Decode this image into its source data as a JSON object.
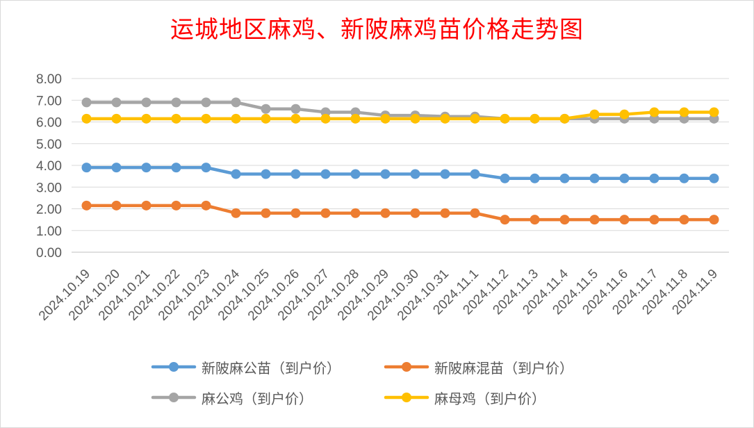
{
  "chart_data": {
    "type": "line",
    "title": "运城地区麻鸡、新陂麻鸡苗价格走势图",
    "xlabel": "",
    "ylabel": "",
    "ylim": [
      0,
      8
    ],
    "y_ticks": [
      "0.00",
      "1.00",
      "2.00",
      "3.00",
      "4.00",
      "5.00",
      "6.00",
      "7.00",
      "8.00"
    ],
    "grid": true,
    "legend_position": "bottom",
    "categories": [
      "2024.10.19",
      "2024.10.20",
      "2024.10.21",
      "2024.10.22",
      "2024.10.23",
      "2024.10.24",
      "2024.10.25",
      "2024.10.26",
      "2024.10.27",
      "2024.10.28",
      "2024.10.29",
      "2024.10.30",
      "2024.10.31",
      "2024.11.1",
      "2024.11.2",
      "2024.11.3",
      "2024.11.4",
      "2024.11.5",
      "2024.11.6",
      "2024.11.7",
      "2024.11.8",
      "2024.11.9"
    ],
    "series": [
      {
        "name": "新陂麻公苗（到户价）",
        "color": "#5b9bd5",
        "values": [
          3.9,
          3.9,
          3.9,
          3.9,
          3.9,
          3.6,
          3.6,
          3.6,
          3.6,
          3.6,
          3.6,
          3.6,
          3.6,
          3.6,
          3.4,
          3.4,
          3.4,
          3.4,
          3.4,
          3.4,
          3.4,
          3.4
        ]
      },
      {
        "name": "新陂麻混苗（到户价）",
        "color": "#ed7d31",
        "values": [
          2.15,
          2.15,
          2.15,
          2.15,
          2.15,
          1.8,
          1.8,
          1.8,
          1.8,
          1.8,
          1.8,
          1.8,
          1.8,
          1.8,
          1.5,
          1.5,
          1.5,
          1.5,
          1.5,
          1.5,
          1.5,
          1.5
        ]
      },
      {
        "name": "麻公鸡（到户价）",
        "color": "#a5a5a5",
        "values": [
          6.9,
          6.9,
          6.9,
          6.9,
          6.9,
          6.9,
          6.6,
          6.6,
          6.45,
          6.45,
          6.3,
          6.3,
          6.25,
          6.25,
          6.15,
          6.15,
          6.15,
          6.15,
          6.15,
          6.15,
          6.15,
          6.15
        ]
      },
      {
        "name": "麻母鸡（到户价）",
        "color": "#ffc000",
        "values": [
          6.15,
          6.15,
          6.15,
          6.15,
          6.15,
          6.15,
          6.15,
          6.15,
          6.15,
          6.15,
          6.15,
          6.15,
          6.15,
          6.15,
          6.15,
          6.15,
          6.15,
          6.35,
          6.35,
          6.45,
          6.45,
          6.45
        ]
      }
    ]
  }
}
